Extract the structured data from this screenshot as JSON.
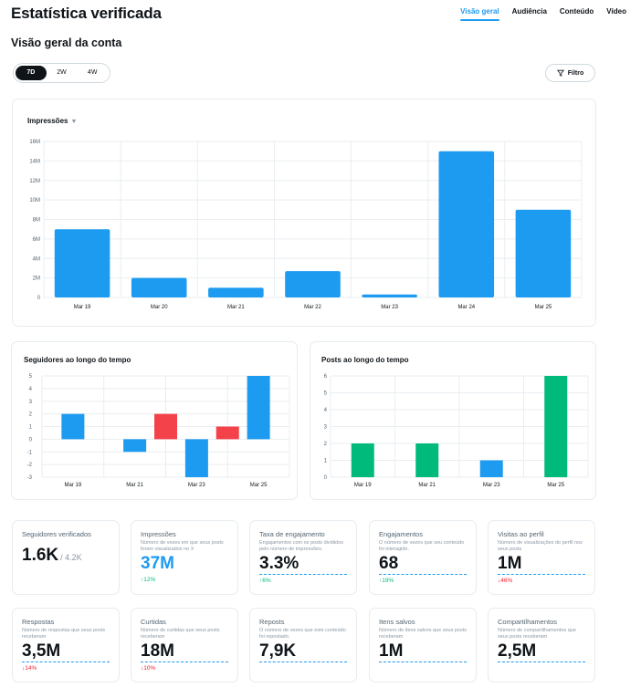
{
  "app": {
    "title": "Estatística verificada"
  },
  "nav": {
    "tabs": [
      "Visão geral",
      "Audiência",
      "Conteúdo",
      "Vídeo"
    ],
    "active_index": 0
  },
  "section": {
    "title": "Visão geral da conta"
  },
  "range": {
    "options": [
      "7D",
      "2W",
      "4W"
    ],
    "active_index": 0
  },
  "filter": {
    "label": "Filtro"
  },
  "colors": {
    "blue": "#1d9bf0",
    "red": "#f4424a",
    "green": "#00ba7c",
    "grid": "#e9eef1"
  },
  "impressions_card": {
    "title": "Impressões",
    "dropdown_icon": "caret-down-icon"
  },
  "followers_card": {
    "title": "Seguidores ao longo do tempo"
  },
  "posts_card": {
    "title": "Posts ao longo do tempo"
  },
  "chart_data": [
    {
      "type": "bar",
      "title": "Impressões",
      "categories": [
        "Mar 19",
        "Mar 20",
        "Mar 21",
        "Mar 22",
        "Mar 23",
        "Mar 24",
        "Mar 25"
      ],
      "values": [
        7000000,
        2000000,
        1000000,
        2700000,
        300000,
        15000000,
        9000000
      ],
      "ylim": [
        0,
        16000000
      ],
      "yticks": [
        "0",
        "2M",
        "4M",
        "6M",
        "8M",
        "10M",
        "12M",
        "14M",
        "16M"
      ],
      "grid": true
    },
    {
      "type": "bar",
      "title": "Seguidores ao longo do tempo",
      "categories": [
        "Mar 19",
        "Mar 20",
        "Mar 21",
        "Mar 22",
        "Mar 23",
        "Mar 24",
        "Mar 25"
      ],
      "xticks": [
        "Mar 19",
        "Mar 21",
        "Mar 23",
        "Mar 25"
      ],
      "bars": [
        {
          "x": 0,
          "from": 0,
          "to": 2,
          "kind": "gain"
        },
        {
          "x": 1,
          "from": 0,
          "to": -1,
          "kind": "gain"
        },
        {
          "x": 1.5,
          "from": 0,
          "to": 2,
          "kind": "loss"
        },
        {
          "x": 2,
          "from": 0,
          "to": -3,
          "kind": "gain"
        },
        {
          "x": 2.5,
          "from": 0,
          "to": 1,
          "kind": "loss"
        },
        {
          "x": 3,
          "from": 0,
          "to": 5,
          "kind": "gain"
        }
      ],
      "ylim": [
        -3,
        5
      ],
      "yticks": [
        "-3",
        "-2",
        "-1",
        "0",
        "1",
        "2",
        "3",
        "4",
        "5"
      ],
      "grid": true
    },
    {
      "type": "bar",
      "title": "Posts ao longo do tempo",
      "categories": [
        "Mar 19",
        "Mar 20",
        "Mar 21",
        "Mar 22",
        "Mar 23",
        "Mar 24",
        "Mar 25"
      ],
      "xticks": [
        "Mar 19",
        "Mar 21",
        "Mar 23",
        "Mar 25"
      ],
      "bars": [
        {
          "x": 0,
          "value": 2,
          "color": "green"
        },
        {
          "x": 1,
          "value": 2,
          "color": "green"
        },
        {
          "x": 2,
          "value": 1,
          "color": "blue"
        },
        {
          "x": 3,
          "value": 6,
          "color": "green"
        }
      ],
      "ylim": [
        0,
        6
      ],
      "yticks": [
        "0",
        "1",
        "2",
        "3",
        "4",
        "5",
        "6"
      ],
      "grid": true
    }
  ],
  "stats": [
    {
      "label": "Seguidores verificados",
      "desc": "",
      "value": "1.6K",
      "sub": "/ 4.2K",
      "change": "",
      "dir": "",
      "style": "plain"
    },
    {
      "label": "Impressões",
      "desc": "Número de vezes em que seus posts foram visualizados no X",
      "value": "37M",
      "sub": "",
      "change": "↑12%",
      "dir": "up",
      "style": "blue"
    },
    {
      "label": "Taxa de engajamento",
      "desc": "Engajamentos com os posts divididos pelo número de impressões.",
      "value": "3.3%",
      "sub": "",
      "change": "↑6%",
      "dir": "up",
      "style": "dashed"
    },
    {
      "label": "Engajamentos",
      "desc": "O número de vezes que seu conteúdo foi interagido.",
      "value": "68",
      "sub": "",
      "change": "↑19%",
      "dir": "up",
      "style": "dashed"
    },
    {
      "label": "Visitas ao perfil",
      "desc": "Número de visualizações do perfil nos seus posts",
      "value": "1M",
      "sub": "",
      "change": "↓46%",
      "dir": "down",
      "style": "dashed"
    },
    {
      "label": "Respostas",
      "desc": "Número de respostas que seus posts receberam",
      "value": "3,5M",
      "sub": "",
      "change": "↓14%",
      "dir": "down",
      "style": "dashed"
    },
    {
      "label": "Curtidas",
      "desc": "Número de curtidas que seus posts receberam",
      "value": "18M",
      "sub": "",
      "change": "↓10%",
      "dir": "down",
      "style": "dashed"
    },
    {
      "label": "Reposts",
      "desc": "O número de vezes que este conteúdo foi repostado.",
      "value": "7,9K",
      "sub": "",
      "change": "",
      "dir": "",
      "style": "dashed"
    },
    {
      "label": "Itens salvos",
      "desc": "Número de itens salvos que seus posts receberam",
      "value": "1M",
      "sub": "",
      "change": "",
      "dir": "",
      "style": "dashed"
    },
    {
      "label": "Compartilhamentos",
      "desc": "Número de compartilhamentos que seus posts receberam",
      "value": "2,5M",
      "sub": "",
      "change": "",
      "dir": "",
      "style": "dashed"
    }
  ]
}
